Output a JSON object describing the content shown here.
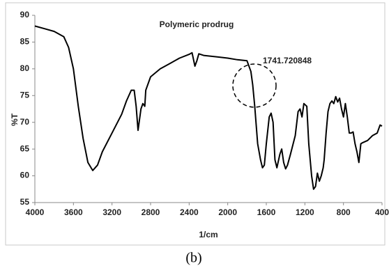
{
  "chart_data": {
    "type": "line",
    "title": "Polymeric prodrug",
    "x_label": "1/cm",
    "y_label": "%T",
    "caption": "(b)",
    "annotation": "1741.720848",
    "color": "#000000",
    "xlim": [
      4000,
      400
    ],
    "xticks": [
      4000,
      3600,
      3200,
      2800,
      2400,
      2000,
      1600,
      1200,
      800,
      400
    ],
    "ylim": [
      55,
      90
    ],
    "yticks": [
      55,
      60,
      65,
      70,
      75,
      80,
      85,
      90
    ],
    "x": [
      4000,
      3900,
      3800,
      3700,
      3650,
      3600,
      3550,
      3500,
      3450,
      3400,
      3350,
      3300,
      3200,
      3100,
      3050,
      3000,
      2970,
      2950,
      2930,
      2900,
      2880,
      2860,
      2850,
      2800,
      2700,
      2600,
      2500,
      2400,
      2370,
      2340,
      2320,
      2300,
      2250,
      2100,
      2000,
      1900,
      1800,
      1760,
      1741,
      1720,
      1690,
      1660,
      1640,
      1620,
      1600,
      1570,
      1550,
      1530,
      1510,
      1490,
      1460,
      1440,
      1420,
      1400,
      1380,
      1350,
      1300,
      1270,
      1250,
      1230,
      1210,
      1180,
      1160,
      1130,
      1110,
      1090,
      1070,
      1050,
      1030,
      1010,
      1000,
      980,
      960,
      940,
      920,
      900,
      880,
      860,
      840,
      820,
      800,
      780,
      760,
      740,
      720,
      700,
      680,
      660,
      640,
      620,
      600,
      550,
      500,
      450,
      420,
      400
    ],
    "values": [
      88,
      87.5,
      87,
      86,
      84,
      80,
      73,
      67,
      62.5,
      61,
      62,
      64.5,
      68,
      71.5,
      74,
      76,
      76,
      73,
      68.5,
      72.5,
      73.5,
      73,
      76,
      78.5,
      80,
      81,
      82,
      82.7,
      83,
      80.5,
      81.5,
      82.8,
      82.5,
      82.2,
      82,
      81.7,
      81.5,
      79.5,
      77,
      73,
      66,
      63,
      61.5,
      62,
      66,
      71,
      71.7,
      70,
      63,
      61.5,
      64,
      65,
      62.5,
      61.3,
      62,
      64,
      67.5,
      72,
      72.5,
      71,
      73.5,
      73,
      66,
      60,
      57.5,
      58,
      60.5,
      59,
      60,
      61.5,
      63,
      68,
      72,
      73.5,
      74,
      73.5,
      74.8,
      73.8,
      74.5,
      72.5,
      71,
      73.5,
      71,
      68,
      68,
      68.2,
      66,
      64.5,
      62.5,
      66,
      66.2,
      66.6,
      67.5,
      68,
      69.5,
      69.3
    ]
  }
}
